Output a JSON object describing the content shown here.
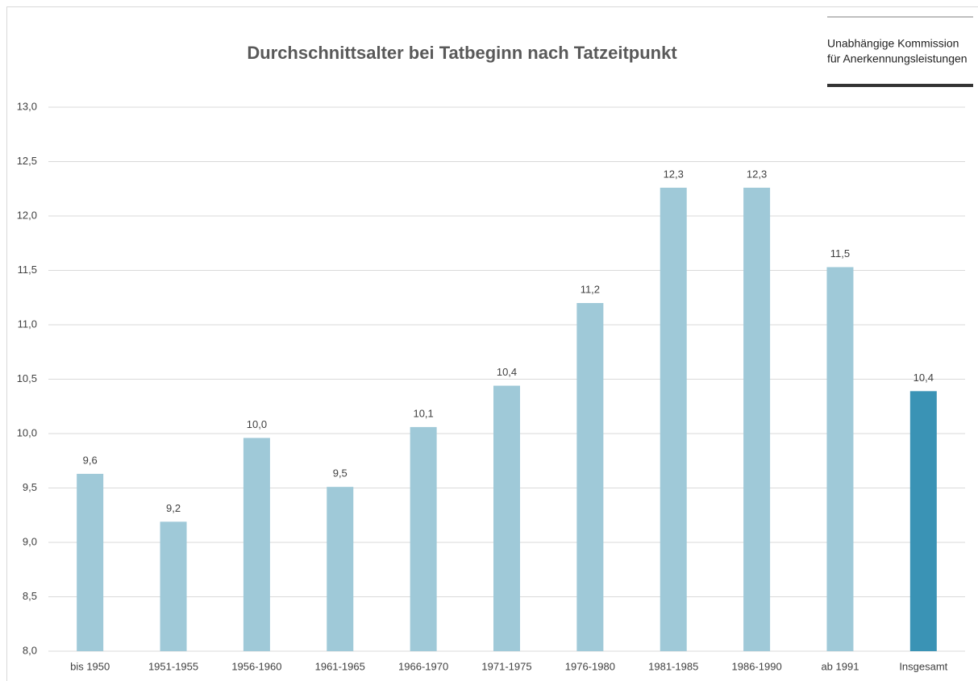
{
  "chart_data": {
    "type": "bar",
    "title": "Durchschnittsalter bei Tatbeginn nach Tatzeitpunkt",
    "logo": [
      "Unabhängige Kommission",
      "für Anerkennungsleistungen"
    ],
    "categories": [
      "bis 1950",
      "1951-1955",
      "1956-1960",
      "1961-1965",
      "1966-1970",
      "1971-1975",
      "1976-1980",
      "1981-1985",
      "1986-1990",
      "ab 1991",
      "Insgesamt"
    ],
    "values": [
      9.63,
      9.19,
      9.96,
      9.51,
      10.06,
      10.44,
      11.2,
      12.26,
      12.26,
      11.53,
      10.39
    ],
    "value_labels": [
      "9,6",
      "9,2",
      "10,0",
      "9,5",
      "10,1",
      "10,4",
      "11,2",
      "12,3",
      "12,3",
      "11,5",
      "10,4"
    ],
    "colors": [
      "#9fc9d8",
      "#9fc9d8",
      "#9fc9d8",
      "#9fc9d8",
      "#9fc9d8",
      "#9fc9d8",
      "#9fc9d8",
      "#9fc9d8",
      "#9fc9d8",
      "#9fc9d8",
      "#3a93b5"
    ],
    "ylim": [
      8,
      13
    ],
    "yticks": [
      {
        "value": 8,
        "label": "8,0"
      },
      {
        "value": 8.5,
        "label": "8,5"
      },
      {
        "value": 9,
        "label": "9,0"
      },
      {
        "value": 9.5,
        "label": "9,5"
      },
      {
        "value": 10,
        "label": "10,0"
      },
      {
        "value": 10.5,
        "label": "10,5"
      },
      {
        "value": 11,
        "label": "11,0"
      },
      {
        "value": 11.5,
        "label": "11,5"
      },
      {
        "value": 12,
        "label": "12,0"
      },
      {
        "value": 12.5,
        "label": "12,5"
      },
      {
        "value": 13,
        "label": "13,0"
      }
    ],
    "grid": true
  }
}
